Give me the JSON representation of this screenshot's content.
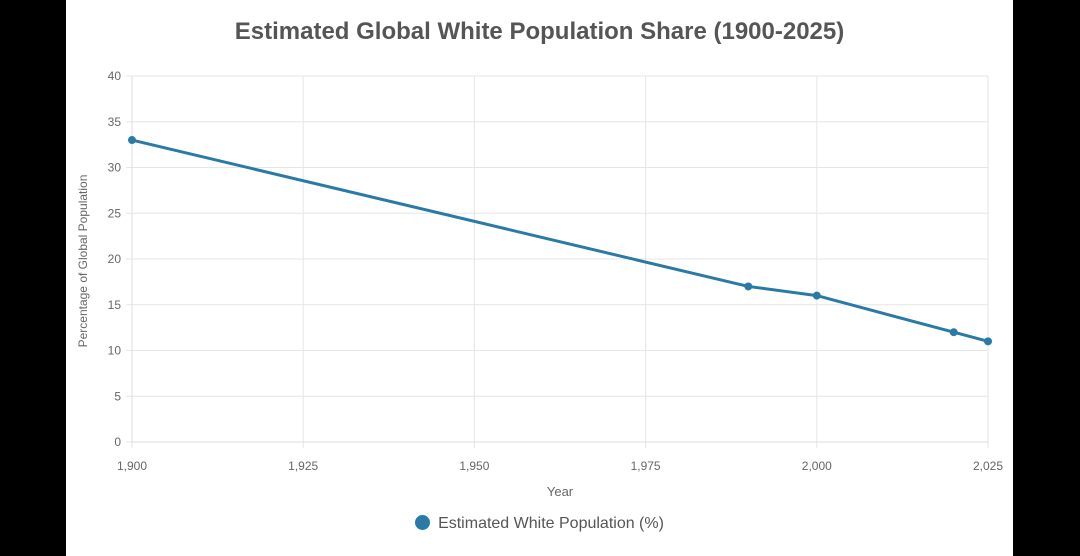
{
  "chart_data": {
    "type": "line",
    "title": "Estimated Global White Population Share (1900-2025)",
    "xlabel": "Year",
    "ylabel": "Percentage of Global Population",
    "xlim": [
      1900,
      2025
    ],
    "ylim": [
      0,
      40
    ],
    "x_ticks": [
      "1,900",
      "1,925",
      "1,950",
      "1,975",
      "2,000",
      "2,025"
    ],
    "y_ticks": [
      "0",
      "5",
      "10",
      "15",
      "20",
      "25",
      "30",
      "35",
      "40"
    ],
    "grid": true,
    "legend_position": "bottom",
    "series": [
      {
        "name": "Estimated White Population (%)",
        "color": "#2a7aa8",
        "x": [
          1900,
          1990,
          2000,
          2020,
          2025
        ],
        "y": [
          33,
          17,
          16,
          12,
          11
        ]
      }
    ]
  }
}
